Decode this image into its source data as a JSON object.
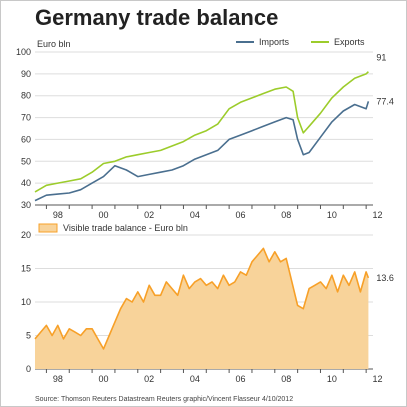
{
  "title": "Germany trade balance",
  "source": "Source: Thomson Reuters Datastream Reuters graphic/Vincent Flasseur 4/10/2012",
  "colors": {
    "imports": "#4a6f8f",
    "exports": "#9ccc2b",
    "balance_fill": "#f8d39a",
    "balance_line": "#f7a028",
    "grid": "#dddddd",
    "axis": "#555555"
  },
  "chart_data": [
    {
      "type": "line",
      "unit_label": "Euro bln",
      "ylim": [
        30,
        100
      ],
      "yticks": [
        30,
        40,
        50,
        60,
        70,
        80,
        90,
        100
      ],
      "xlim": [
        1997.5,
        2012.3
      ],
      "xticks": [
        {
          "value": 1998,
          "label": "98"
        },
        {
          "value": 2000,
          "label": "00"
        },
        {
          "value": 2002,
          "label": "02"
        },
        {
          "value": 2004,
          "label": "04"
        },
        {
          "value": 2006,
          "label": "06"
        },
        {
          "value": 2008,
          "label": "08"
        },
        {
          "value": 2010,
          "label": "10"
        },
        {
          "value": 2012,
          "label": "12"
        }
      ],
      "grid": true,
      "legend_position": "top-right",
      "series": [
        {
          "name": "Imports",
          "color": "#4a6f8f",
          "end_label": "77.4",
          "x": [
            1997.5,
            1998.0,
            1998.5,
            1999.0,
            1999.5,
            2000.0,
            2000.5,
            2001.0,
            2001.5,
            2002.0,
            2002.5,
            2003.0,
            2003.5,
            2004.0,
            2004.5,
            2005.0,
            2005.5,
            2006.0,
            2006.5,
            2007.0,
            2007.5,
            2008.0,
            2008.5,
            2008.8,
            2009.0,
            2009.25,
            2009.5,
            2010.0,
            2010.5,
            2011.0,
            2011.5,
            2012.0,
            2012.1
          ],
          "values": [
            32,
            34.5,
            35,
            35.5,
            37,
            40,
            43,
            48,
            46,
            43,
            44,
            45,
            46,
            48,
            51,
            53,
            55,
            60,
            62,
            64,
            66,
            68,
            70,
            69,
            60,
            53,
            54,
            61,
            68,
            73,
            76,
            74,
            77.4
          ]
        },
        {
          "name": "Exports",
          "color": "#9ccc2b",
          "end_label": "91",
          "x": [
            1997.5,
            1998.0,
            1998.5,
            1999.0,
            1999.5,
            2000.0,
            2000.5,
            2001.0,
            2001.5,
            2002.0,
            2002.5,
            2003.0,
            2003.5,
            2004.0,
            2004.5,
            2005.0,
            2005.5,
            2006.0,
            2006.5,
            2007.0,
            2007.5,
            2008.0,
            2008.5,
            2008.8,
            2009.0,
            2009.25,
            2009.5,
            2010.0,
            2010.5,
            2011.0,
            2011.5,
            2012.0,
            2012.1
          ],
          "values": [
            36,
            39,
            40,
            41,
            42,
            45,
            49,
            50,
            52,
            53,
            54,
            55,
            57,
            59,
            62,
            64,
            67,
            74,
            77,
            79,
            81,
            83,
            84,
            82,
            70,
            63,
            66,
            72,
            79,
            84,
            88,
            90,
            91
          ]
        }
      ]
    },
    {
      "type": "area",
      "ylim": [
        0,
        20
      ],
      "yticks": [
        0,
        5,
        10,
        15,
        20
      ],
      "xlim": [
        1997.5,
        2012.3
      ],
      "xticks": [
        {
          "value": 1998,
          "label": "98"
        },
        {
          "value": 2000,
          "label": "00"
        },
        {
          "value": 2002,
          "label": "02"
        },
        {
          "value": 2004,
          "label": "04"
        },
        {
          "value": 2006,
          "label": "06"
        },
        {
          "value": 2008,
          "label": "08"
        },
        {
          "value": 2010,
          "label": "10"
        },
        {
          "value": 2012,
          "label": "12"
        }
      ],
      "grid": true,
      "legend_position": "top-left",
      "series": [
        {
          "name": "Visible trade balance - Euro bln",
          "color": "#f7a028",
          "end_label": "13.6",
          "x": [
            1997.5,
            1997.75,
            1998.0,
            1998.25,
            1998.5,
            1998.75,
            1999.0,
            1999.25,
            1999.5,
            1999.75,
            2000.0,
            2000.25,
            2000.5,
            2000.75,
            2001.0,
            2001.25,
            2001.5,
            2001.75,
            2002.0,
            2002.25,
            2002.5,
            2002.75,
            2003.0,
            2003.25,
            2003.5,
            2003.75,
            2004.0,
            2004.25,
            2004.5,
            2004.75,
            2005.0,
            2005.25,
            2005.5,
            2005.75,
            2006.0,
            2006.25,
            2006.5,
            2006.75,
            2007.0,
            2007.25,
            2007.5,
            2007.75,
            2008.0,
            2008.25,
            2008.5,
            2008.75,
            2009.0,
            2009.25,
            2009.5,
            2009.75,
            2010.0,
            2010.25,
            2010.5,
            2010.75,
            2011.0,
            2011.25,
            2011.5,
            2011.75,
            2012.0,
            2012.1
          ],
          "values": [
            4.5,
            5.5,
            6.5,
            5,
            6.5,
            4.5,
            6,
            5.5,
            5,
            6,
            6,
            4.5,
            3,
            5,
            7,
            9,
            10.5,
            10,
            11.5,
            10,
            12.5,
            11,
            11,
            13,
            12,
            11,
            14,
            12,
            13,
            13.5,
            12.5,
            13,
            12,
            14,
            12.5,
            13,
            14.5,
            14,
            16,
            17,
            18,
            16,
            17.5,
            16,
            16.5,
            13,
            9.5,
            9,
            12,
            12.5,
            13,
            12,
            14,
            11.5,
            14,
            12.5,
            14.5,
            11.5,
            14.5,
            13.6
          ]
        }
      ]
    }
  ]
}
